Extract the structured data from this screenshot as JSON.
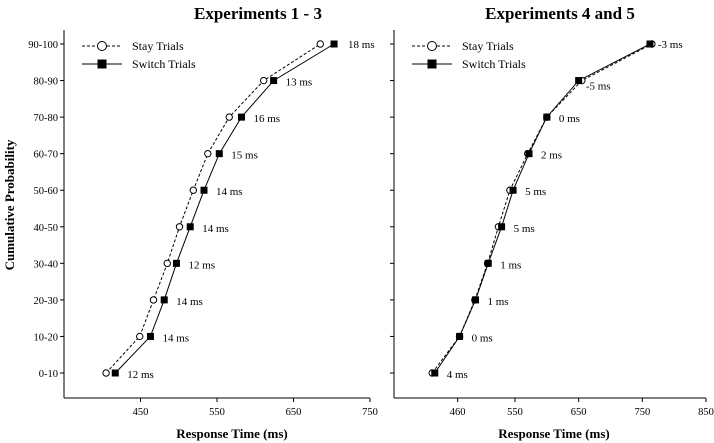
{
  "chart_data": [
    {
      "type": "line",
      "title": "Experiments 1 - 3",
      "xlabel": "Response Time (ms)",
      "ylabel": "Cumulative Probability",
      "xlim": [
        350,
        750
      ],
      "xticks": [
        "450",
        "550",
        "650",
        "750"
      ],
      "categories": [
        "0-10",
        "10-20",
        "20-30",
        "30-40",
        "40-50",
        "50-60",
        "60-70",
        "70-80",
        "80-90",
        "90-100"
      ],
      "legend_position": "top-left",
      "series": [
        {
          "name": "Stay Trials",
          "style": "dashed",
          "marker": "open-circle",
          "values": [
            405,
            449,
            467,
            485,
            501,
            519,
            538,
            566,
            611,
            685
          ]
        },
        {
          "name": "Switch Trials",
          "style": "solid",
          "marker": "filled-square",
          "values": [
            417,
            463,
            481,
            497,
            515,
            533,
            553,
            582,
            624,
            703
          ]
        }
      ],
      "annotations": [
        "12 ms",
        "14 ms",
        "14 ms",
        "12 ms",
        "14 ms",
        "14 ms",
        "15 ms",
        "16 ms",
        "13 ms",
        "18 ms"
      ]
    },
    {
      "type": "line",
      "title": "Experiments 4 and 5",
      "xlabel": "Response Time (ms)",
      "ylabel": "",
      "xlim": [
        360,
        850
      ],
      "xticks": [
        "460",
        "550",
        "650",
        "750",
        "850"
      ],
      "categories": [
        "0-10",
        "10-20",
        "20-30",
        "30-40",
        "40-50",
        "50-60",
        "60-70",
        "70-80",
        "80-90",
        "90-100"
      ],
      "legend_position": "top-left",
      "series": [
        {
          "name": "Stay Trials",
          "style": "dashed",
          "marker": "open-circle",
          "values": [
            420,
            463,
            487,
            507,
            524,
            542,
            570,
            600,
            655,
            765
          ]
        },
        {
          "name": "Switch Trials",
          "style": "solid",
          "marker": "filled-square",
          "values": [
            424,
            463,
            488,
            508,
            529,
            547,
            572,
            600,
            650,
            762
          ]
        }
      ],
      "annotations": [
        "4 ms",
        "0 ms",
        "1 ms",
        "1 ms",
        "5 ms",
        "5 ms",
        "2 ms",
        "0 ms",
        "-5 ms",
        "-3 ms"
      ]
    }
  ]
}
